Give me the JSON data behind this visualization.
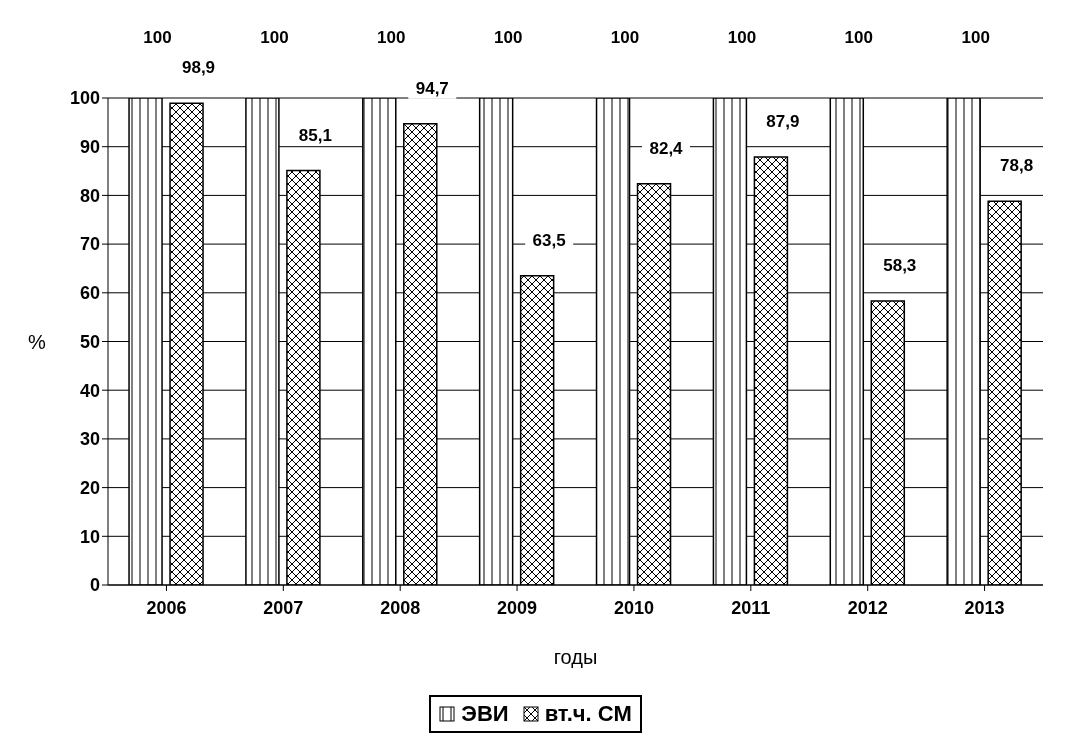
{
  "chart_data": {
    "type": "bar",
    "categories": [
      "2006",
      "2007",
      "2008",
      "2009",
      "2010",
      "2011",
      "2012",
      "2013"
    ],
    "series": [
      {
        "name": "ЭВИ",
        "color": "#000000",
        "values": [
          100,
          100,
          100,
          100,
          100,
          100,
          100,
          100
        ],
        "value_labels": [
          "100",
          "100",
          "100",
          "100",
          "100",
          "100",
          "100",
          "100"
        ]
      },
      {
        "name": "вт.ч. СМ",
        "color": "#000000",
        "values": [
          98.9,
          85.1,
          94.7,
          63.5,
          82.4,
          87.9,
          58.3,
          78.8
        ],
        "value_labels": [
          "98,9",
          "85,1",
          "94,7",
          "63,5",
          "82,4",
          "87,9",
          "58,3",
          "78,8"
        ]
      }
    ],
    "xlabel": "годы",
    "ylabel": "%",
    "ylim": [
      0,
      100
    ],
    "yticks": [
      0,
      10,
      20,
      30,
      40,
      50,
      60,
      70,
      80,
      90,
      100
    ],
    "grid": "y",
    "legend": "bottom"
  }
}
